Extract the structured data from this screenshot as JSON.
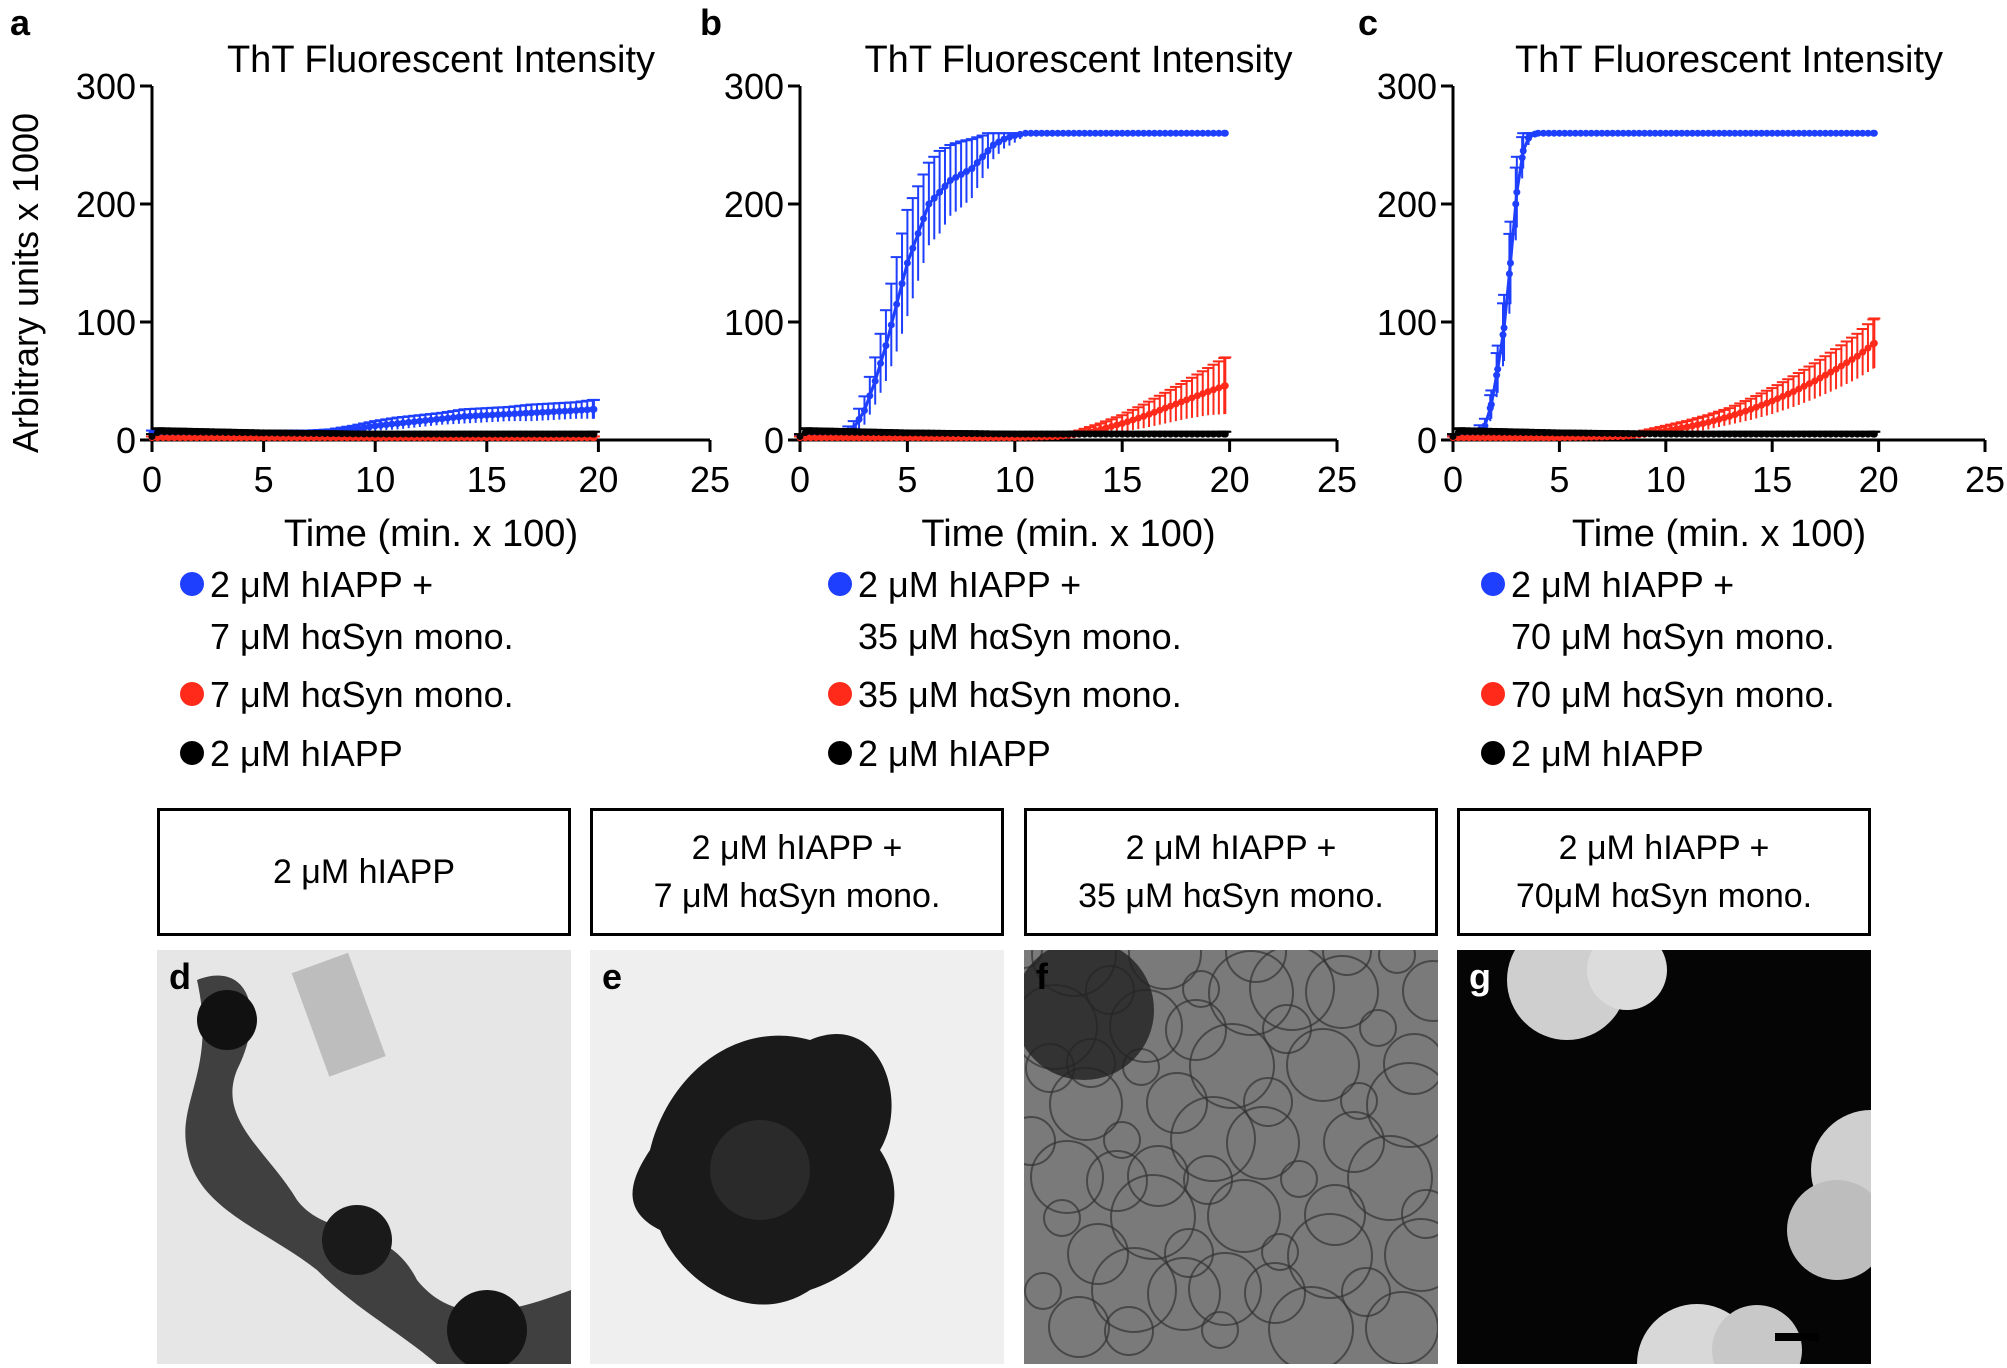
{
  "panels": [
    {
      "letter": "a",
      "chart_data": {
        "type": "line",
        "title": "ThT Fluorescent Intensity",
        "xlabel": "Time (min. x 100)",
        "ylabel": "Arbitrary units x 1000",
        "xlim": [
          0,
          25
        ],
        "ylim": [
          0,
          300
        ],
        "xticks": [
          0,
          5,
          10,
          15,
          20,
          25
        ],
        "yticks": [
          0,
          100,
          200,
          300
        ],
        "series": [
          {
            "name": "2 μM hIAPP +\n7 μM hαSyn mono.",
            "color": "#1f3fff",
            "x": [
              0,
              2,
              4,
              6,
              7,
              8,
              9,
              10,
              11,
              12,
              13,
              14,
              15,
              16,
              17,
              18,
              19,
              19.8
            ],
            "y": [
              6,
              6,
              6,
              6,
              6,
              7,
              9,
              12,
              14,
              16,
              18,
              20,
              21,
              22,
              23,
              24,
              25,
              26
            ],
            "err": [
              2,
              2,
              2,
              2,
              2,
              2,
              3,
              4,
              5,
              5,
              5,
              6,
              6,
              6,
              7,
              7,
              7,
              8
            ]
          },
          {
            "name": "7 μM hαSyn mono.",
            "color": "#ff2a1a",
            "x": [
              0,
              5,
              10,
              15,
              19.8
            ],
            "y": [
              2,
              2,
              2,
              2,
              2
            ],
            "err": [
              1,
              1,
              1,
              1,
              1
            ]
          },
          {
            "name": "2 μM hIAPP",
            "color": "#000000",
            "x": [
              0,
              0.3,
              5,
              10,
              15,
              19.8
            ],
            "y": [
              3,
              7,
              6,
              5,
              5,
              5
            ],
            "err": [
              2,
              3,
              2,
              2,
              2,
              2
            ]
          }
        ]
      }
    },
    {
      "letter": "b",
      "chart_data": {
        "type": "line",
        "title": "ThT Fluorescent Intensity",
        "xlabel": "Time (min. x 100)",
        "ylabel": "",
        "xlim": [
          0,
          25
        ],
        "ylim": [
          0,
          300
        ],
        "xticks": [
          0,
          5,
          10,
          15,
          20,
          25
        ],
        "yticks": [
          0,
          100,
          200,
          300
        ],
        "series": [
          {
            "name": "2 μM hIAPP +\n35 μM hαSyn mono.",
            "color": "#1f3fff",
            "x": [
              0,
              2,
              2.5,
              3,
              3.5,
              4,
              4.5,
              5,
              5.5,
              6,
              6.5,
              7,
              7.5,
              8,
              8.5,
              9,
              9.5,
              10,
              10.5,
              12,
              15,
              19.8
            ],
            "y": [
              3,
              5,
              10,
              25,
              50,
              80,
              115,
              150,
              175,
              200,
              210,
              220,
              225,
              230,
              240,
              250,
              255,
              258,
              260,
              260,
              260,
              260
            ],
            "err": [
              1,
              2,
              6,
              12,
              20,
              30,
              40,
              45,
              40,
              35,
              35,
              30,
              28,
              25,
              18,
              12,
              8,
              6,
              2,
              0,
              0,
              0
            ]
          },
          {
            "name": "35 μM hαSyn mono.",
            "color": "#ff2a1a",
            "x": [
              0,
              5,
              10,
              12,
              13,
              14,
              15,
              16,
              17,
              18,
              19,
              19.8
            ],
            "y": [
              2,
              2,
              2,
              3,
              5,
              9,
              14,
              20,
              27,
              34,
              41,
              46
            ],
            "err": [
              1,
              1,
              1,
              2,
              3,
              5,
              7,
              10,
              13,
              16,
              20,
              24
            ]
          },
          {
            "name": "2 μM hIAPP",
            "color": "#000000",
            "x": [
              0,
              0.3,
              5,
              10,
              15,
              19.8
            ],
            "y": [
              3,
              7,
              6,
              5,
              5,
              5
            ],
            "err": [
              2,
              3,
              2,
              2,
              2,
              2
            ]
          }
        ]
      }
    },
    {
      "letter": "c",
      "chart_data": {
        "type": "line",
        "title": "ThT Fluorescent Intensity",
        "xlabel": "Time (min. x 100)",
        "ylabel": "",
        "xlim": [
          0,
          25
        ],
        "ylim": [
          0,
          300
        ],
        "xticks": [
          0,
          5,
          10,
          15,
          20,
          25
        ],
        "yticks": [
          0,
          100,
          200,
          300
        ],
        "series": [
          {
            "name": "2 μM hIAPP +\n70 μM hαSyn mono.",
            "color": "#1f3fff",
            "x": [
              0,
              1,
              1.5,
              1.8,
              2.1,
              2.4,
              2.7,
              3.0,
              3.3,
              3.6,
              4,
              6,
              10,
              15,
              19.8
            ],
            "y": [
              3,
              5,
              12,
              30,
              60,
              95,
              150,
              210,
              245,
              258,
              260,
              260,
              260,
              260,
              260
            ],
            "err": [
              1,
              2,
              6,
              12,
              20,
              28,
              35,
              30,
              15,
              4,
              0,
              0,
              0,
              0,
              0
            ]
          },
          {
            "name": "70 μM hαSyn mono.",
            "color": "#ff2a1a",
            "x": [
              0,
              5,
              8,
              9,
              10,
              11,
              12,
              13,
              14,
              15,
              16,
              17,
              18,
              19,
              19.8
            ],
            "y": [
              2,
              2,
              3,
              5,
              8,
              11,
              15,
              20,
              26,
              33,
              41,
              50,
              60,
              71,
              82
            ],
            "err": [
              1,
              1,
              2,
              3,
              4,
              5,
              6,
              7,
              9,
              11,
              13,
              15,
              17,
              19,
              21
            ]
          },
          {
            "name": "2 μM hIAPP",
            "color": "#000000",
            "x": [
              0,
              0.3,
              5,
              10,
              15,
              19.8
            ],
            "y": [
              3,
              7,
              6,
              5,
              5,
              5
            ],
            "err": [
              2,
              3,
              2,
              2,
              2,
              2
            ]
          }
        ]
      }
    }
  ],
  "em_panels": [
    {
      "letter": "d",
      "caption": "2 μM hIAPP",
      "background": "#e6e6e6",
      "style": "aggregate-chain"
    },
    {
      "letter": "e",
      "caption": "2 μM hIAPP +\n7 μM hαSyn mono.",
      "background": "#efefef",
      "style": "aggregate-cluster"
    },
    {
      "letter": "f",
      "caption": "2 μM hIAPP +\n35 μM hαSyn mono.",
      "background": "#9a9a9a",
      "style": "fibril-mesh"
    },
    {
      "letter": "g",
      "caption": "2 μM hIAPP +\n70μM hαSyn mono.",
      "background": "#050505",
      "style": "dense-dark"
    }
  ]
}
